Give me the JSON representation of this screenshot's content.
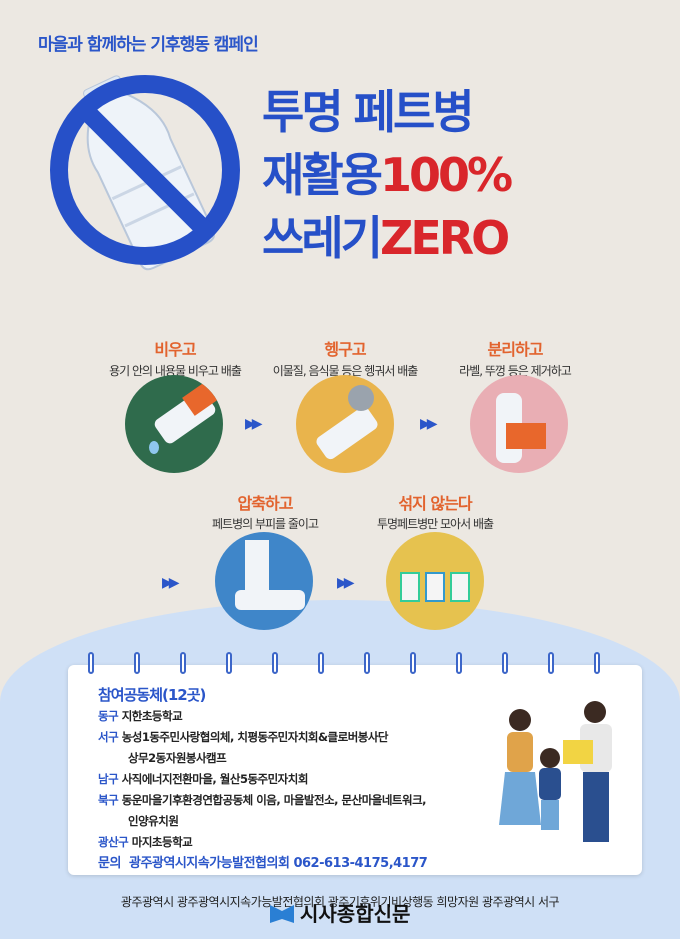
{
  "header": {
    "campaign": "마을과 함께하는 기후행동 캠페인",
    "line1": "투명 페트병",
    "line2_a": "재활용",
    "line2_b": "100%",
    "line3_a": "쓰레기",
    "line3_b": "ZERO"
  },
  "colors": {
    "blue": "#2650c8",
    "red": "#d9262b",
    "orange": "#e2632e",
    "background": "#ece8e2"
  },
  "steps": [
    {
      "title": "비우고",
      "desc": "용기 안의 내용물 비우고 배출",
      "bg": "#2f6b4c"
    },
    {
      "title": "헹구고",
      "desc": "이물질, 음식물 등은 헹궈서 배출",
      "bg": "#e9b44c"
    },
    {
      "title": "분리하고",
      "desc": "라벨, 뚜껑 등은 제거하고",
      "bg": "#e9aeb4"
    },
    {
      "title": "압축하고",
      "desc": "페트병의 부피를 줄이고",
      "bg": "#3f86c9"
    },
    {
      "title": "섞지 않는다",
      "desc": "투명페트병만 모아서 배출",
      "bg": "#e6c24f"
    }
  ],
  "participants": {
    "title": "참여공동체(12곳)",
    "rows": [
      {
        "district": "동구",
        "orgs": "지한초등학교"
      },
      {
        "district": "서구",
        "orgs": "농성1동주민사랑협의체, 치평동주민자치회&클로버봉사단"
      },
      {
        "district": "",
        "orgs": "상무2동자원봉사캠프"
      },
      {
        "district": "남구",
        "orgs": "사직에너지전환마을, 월산5동주민자치회"
      },
      {
        "district": "북구",
        "orgs": "동운마을기후환경연합공동체 이음, 마을발전소, 문산마을네트워크,"
      },
      {
        "district": "",
        "orgs": "인양유치원"
      },
      {
        "district": "광산구",
        "orgs": "마지초등학교"
      }
    ],
    "contact_label": "문의",
    "contact": "광주광역시지속가능발전협의회 062-613-4175,4177"
  },
  "footer": {
    "sponsors": "광주광역시  광주광역시지속가능발전협의회  광주기후위기비상행동  희망자원  광주광역시 서구",
    "watermark": "시사종합신문"
  }
}
